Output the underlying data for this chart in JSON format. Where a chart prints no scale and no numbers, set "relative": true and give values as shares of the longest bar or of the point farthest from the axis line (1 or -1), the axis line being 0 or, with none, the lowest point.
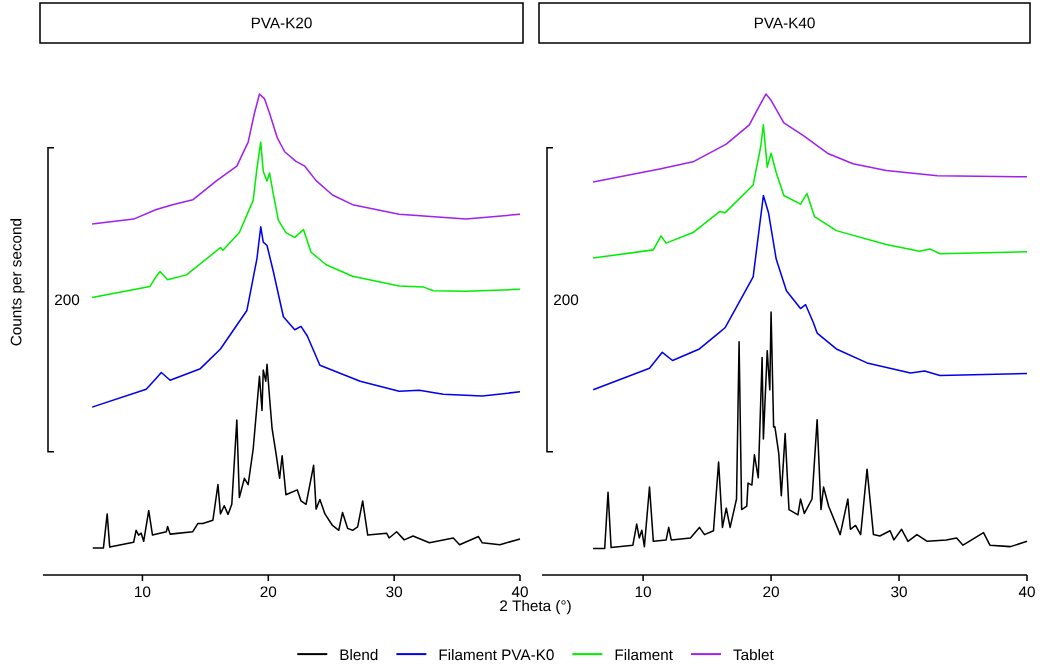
{
  "chart_data": [
    {
      "type": "line",
      "title": "PVA-K20",
      "xlabel": "2 Theta (°)",
      "ylabel": "Counts per second",
      "annotations": [
        "200"
      ],
      "relative": true,
      "xlim": [
        2.1,
        40
      ],
      "xticks": [
        10,
        20,
        30,
        40
      ],
      "legend": "bottom",
      "series": [
        {
          "name": "Blend",
          "color": "#000000",
          "x": [
            6.05,
            6.9,
            7.2,
            7.4,
            9.3,
            9.5,
            9.7,
            9.9,
            10.1,
            10.5,
            10.8,
            11.9,
            12.0,
            12.2,
            14.0,
            14.4,
            14.8,
            15.6,
            16.0,
            16.2,
            16.5,
            16.8,
            17.1,
            17.5,
            17.7,
            18.1,
            18.4,
            18.8,
            19.3,
            19.5,
            19.6,
            19.8,
            19.9,
            20.1,
            20.3,
            20.6,
            20.9,
            21.1,
            21.4,
            22.3,
            22.6,
            23.0,
            23.6,
            23.8,
            24.1,
            24.5,
            25.1,
            25.6,
            25.9,
            26.3,
            26.7,
            27.1,
            27.5,
            27.9,
            29.4,
            29.6,
            30.2,
            30.8,
            31.5,
            32.8,
            33.9,
            34.7,
            35.2,
            36.7,
            37.0,
            38.4,
            40.0
          ],
          "values": [
            0.056,
            0.056,
            0.127,
            0.058,
            0.068,
            0.093,
            0.083,
            0.087,
            0.07,
            0.134,
            0.083,
            0.09,
            0.101,
            0.085,
            0.09,
            0.107,
            0.107,
            0.114,
            0.188,
            0.127,
            0.144,
            0.126,
            0.147,
            0.322,
            0.161,
            0.201,
            0.188,
            0.262,
            0.413,
            0.342,
            0.426,
            0.403,
            0.438,
            0.369,
            0.305,
            0.255,
            0.201,
            0.248,
            0.167,
            0.177,
            0.154,
            0.147,
            0.228,
            0.137,
            0.157,
            0.127,
            0.103,
            0.093,
            0.13,
            0.097,
            0.093,
            0.1,
            0.154,
            0.083,
            0.087,
            0.077,
            0.09,
            0.073,
            0.081,
            0.067,
            0.073,
            0.077,
            0.063,
            0.08,
            0.067,
            0.063,
            0.075
          ]
        },
        {
          "name": "Filament PVA-K0",
          "color": "#0000ee",
          "x": [
            6.0,
            10.3,
            11.1,
            11.5,
            12.2,
            14.6,
            16.2,
            18.3,
            19.1,
            19.4,
            19.6,
            19.9,
            20.4,
            21.2,
            22.1,
            22.6,
            23.1,
            24.1,
            27.3,
            30.4,
            32.0,
            33.9,
            37.0,
            40.0
          ],
          "values": [
            0.349,
            0.386,
            0.409,
            0.421,
            0.405,
            0.429,
            0.47,
            0.55,
            0.658,
            0.724,
            0.692,
            0.685,
            0.631,
            0.537,
            0.51,
            0.517,
            0.497,
            0.436,
            0.403,
            0.382,
            0.384,
            0.376,
            0.372,
            0.381
          ]
        },
        {
          "name": "Filament",
          "color": "#00ee00",
          "x": [
            6.0,
            10.6,
            11.1,
            11.4,
            12.0,
            13.5,
            15.6,
            16.2,
            16.4,
            17.7,
            18.8,
            19.1,
            19.4,
            19.6,
            19.9,
            20.1,
            20.4,
            20.8,
            21.4,
            22.1,
            22.8,
            23.4,
            24.6,
            26.7,
            30.4,
            32.3,
            33.1,
            35.7,
            40.0
          ],
          "values": [
            0.577,
            0.6,
            0.621,
            0.631,
            0.614,
            0.624,
            0.668,
            0.681,
            0.675,
            0.712,
            0.779,
            0.846,
            0.9,
            0.839,
            0.819,
            0.836,
            0.792,
            0.738,
            0.712,
            0.702,
            0.718,
            0.671,
            0.645,
            0.621,
            0.601,
            0.599,
            0.591,
            0.59,
            0.594
          ]
        },
        {
          "name": "Tablet",
          "color": "#a020f0",
          "x": [
            6.0,
            9.3,
            11.1,
            12.4,
            14.0,
            15.9,
            17.5,
            18.4,
            18.9,
            19.3,
            19.7,
            20.1,
            20.7,
            21.3,
            22.2,
            22.9,
            23.8,
            25.1,
            26.7,
            30.4,
            35.7,
            40.0
          ],
          "values": [
            0.73,
            0.74,
            0.76,
            0.77,
            0.78,
            0.82,
            0.85,
            0.9,
            0.96,
            1.0,
            0.99,
            0.96,
            0.91,
            0.88,
            0.86,
            0.85,
            0.82,
            0.79,
            0.77,
            0.75,
            0.74,
            0.75
          ]
        }
      ]
    },
    {
      "type": "line",
      "title": "PVA-K40",
      "annotations": [
        "200"
      ],
      "relative": true,
      "xlim": [
        2.1,
        40
      ],
      "xticks": [
        10,
        20,
        30,
        40
      ],
      "series": [
        {
          "color": "#000000",
          "x": [
            6.09,
            7.0,
            7.26,
            7.5,
            9.2,
            9.5,
            9.7,
            9.9,
            10.1,
            10.5,
            10.8,
            11.8,
            12.0,
            12.2,
            13.7,
            14.4,
            14.8,
            15.5,
            15.9,
            16.2,
            16.5,
            16.8,
            17.3,
            17.5,
            17.7,
            18.1,
            18.2,
            18.5,
            18.7,
            19.0,
            19.3,
            19.4,
            19.7,
            19.9,
            20.0,
            20.2,
            20.3,
            20.6,
            20.8,
            21.1,
            21.4,
            22.1,
            22.3,
            22.6,
            23.2,
            23.6,
            23.9,
            24.1,
            24.5,
            25.4,
            26.0,
            26.2,
            26.6,
            27.0,
            27.5,
            28.0,
            28.5,
            29.3,
            29.6,
            30.2,
            30.7,
            31.4,
            32.2,
            33.7,
            34.5,
            35.0,
            36.6,
            37.1,
            38.7,
            40.0
          ],
          "values": [
            0.055,
            0.055,
            0.172,
            0.057,
            0.062,
            0.106,
            0.077,
            0.093,
            0.059,
            0.183,
            0.07,
            0.073,
            0.099,
            0.073,
            0.077,
            0.099,
            0.084,
            0.092,
            0.235,
            0.099,
            0.139,
            0.099,
            0.158,
            0.485,
            0.136,
            0.143,
            0.191,
            0.187,
            0.25,
            0.202,
            0.452,
            0.283,
            0.466,
            0.385,
            0.547,
            0.308,
            0.308,
            0.253,
            0.165,
            0.294,
            0.136,
            0.125,
            0.158,
            0.128,
            0.158,
            0.323,
            0.136,
            0.183,
            0.143,
            0.084,
            0.158,
            0.095,
            0.103,
            0.084,
            0.22,
            0.084,
            0.081,
            0.092,
            0.073,
            0.095,
            0.07,
            0.084,
            0.07,
            0.073,
            0.077,
            0.062,
            0.088,
            0.062,
            0.059,
            0.07
          ]
        },
        {
          "color": "#0000ee",
          "x": [
            6.1,
            10.5,
            11.5,
            12.3,
            14.4,
            15.9,
            16.4,
            18.6,
            19.4,
            19.8,
            20.4,
            21.2,
            22.3,
            22.7,
            23.3,
            23.6,
            25.1,
            27.5,
            30.9,
            32.0,
            33.2,
            40.0
          ],
          "values": [
            0.385,
            0.43,
            0.463,
            0.446,
            0.47,
            0.503,
            0.514,
            0.62,
            0.789,
            0.753,
            0.657,
            0.591,
            0.554,
            0.562,
            0.525,
            0.503,
            0.47,
            0.441,
            0.42,
            0.424,
            0.415,
            0.419
          ]
        },
        {
          "color": "#00ee00",
          "x": [
            6.09,
            10.8,
            11.4,
            11.8,
            13.9,
            16.0,
            16.4,
            18.6,
            19.2,
            19.4,
            19.7,
            20.0,
            20.4,
            21.0,
            22.3,
            22.8,
            23.4,
            25.1,
            29.0,
            31.6,
            32.4,
            33.2,
            40.0
          ],
          "values": [
            0.659,
            0.676,
            0.705,
            0.69,
            0.712,
            0.756,
            0.753,
            0.811,
            0.892,
            0.936,
            0.848,
            0.877,
            0.837,
            0.789,
            0.771,
            0.793,
            0.745,
            0.716,
            0.687,
            0.673,
            0.678,
            0.668,
            0.672
          ]
        },
        {
          "color": "#a020f0",
          "x": [
            6.09,
            11.3,
            13.9,
            16.5,
            18.3,
            19.1,
            19.6,
            20.0,
            21.0,
            22.5,
            24.4,
            26.4,
            29.0,
            33.0,
            40.0
          ],
          "values": [
            0.817,
            0.844,
            0.859,
            0.896,
            0.936,
            0.976,
            1.0,
            0.987,
            0.94,
            0.914,
            0.877,
            0.855,
            0.841,
            0.83,
            0.828
          ]
        }
      ]
    }
  ]
}
